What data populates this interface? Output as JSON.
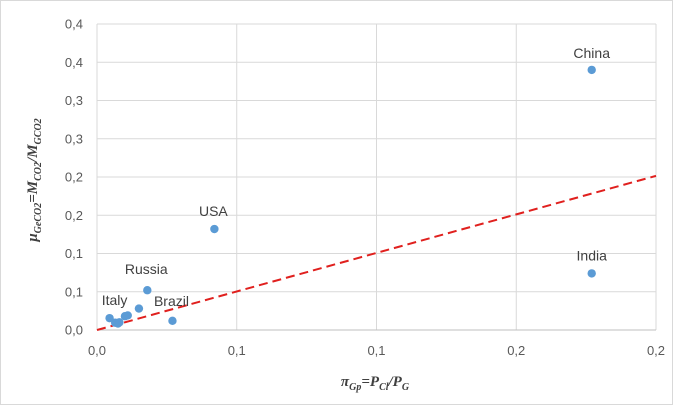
{
  "chart_data": {
    "type": "scatter",
    "xlabel": {
      "main": "π",
      "sub1": "Gp",
      "mid": "=P",
      "sub2": "Cl",
      "end": "/P",
      "sub3": "G"
    },
    "ylabel": {
      "main": "μ",
      "sub1": "GeCO2",
      "mid": "=M",
      "sub2": "CO2",
      "end": "/M",
      "sub3": "GCO2"
    },
    "xlim": [
      0,
      0.2
    ],
    "ylim": [
      0,
      0.4
    ],
    "x_ticks": [
      0,
      0.05,
      0.1,
      0.15,
      0.2
    ],
    "y_ticks": [
      0,
      0.05,
      0.1,
      0.15,
      0.2,
      0.25,
      0.3,
      0.35,
      0.4
    ],
    "x_tick_labels": [
      "0,0",
      "0,1",
      "0,1",
      "0,2",
      "0,2"
    ],
    "y_tick_labels": [
      "0,0",
      "0,1",
      "0,1",
      "0,2",
      "0,2",
      "0,3",
      "0,3",
      "0,4",
      "0,4"
    ],
    "grid": true,
    "points": [
      {
        "x": 0.0045,
        "y": 0.0155
      },
      {
        "x": 0.0065,
        "y": 0.0095
      },
      {
        "x": 0.0075,
        "y": 0.0085
      },
      {
        "x": 0.008,
        "y": 0.01
      },
      {
        "x": 0.01,
        "y": 0.018
      },
      {
        "x": 0.011,
        "y": 0.019
      },
      {
        "x": 0.015,
        "y": 0.028
      },
      {
        "x": 0.018,
        "y": 0.052
      },
      {
        "x": 0.027,
        "y": 0.012
      },
      {
        "x": 0.042,
        "y": 0.132
      },
      {
        "x": 0.177,
        "y": 0.074
      },
      {
        "x": 0.177,
        "y": 0.34
      }
    ],
    "annotations": [
      {
        "text": "China",
        "x": 0.177,
        "y": 0.34
      },
      {
        "text": "USA",
        "x": 0.042,
        "y": 0.132
      },
      {
        "text": "India",
        "x": 0.177,
        "y": 0.074
      },
      {
        "text": "Russia",
        "x": 0.018,
        "y": 0.052
      },
      {
        "text": "Brazil",
        "x": 0.027,
        "y": 0.012
      },
      {
        "text": "Italy",
        "x": 0.0045,
        "y": 0.0155
      }
    ],
    "trendline": {
      "style": "dashed",
      "color": "#e0201e",
      "x": [
        0,
        0.2
      ],
      "y": [
        0.0,
        0.2015
      ]
    },
    "marker_color": "#5b9bd5"
  }
}
